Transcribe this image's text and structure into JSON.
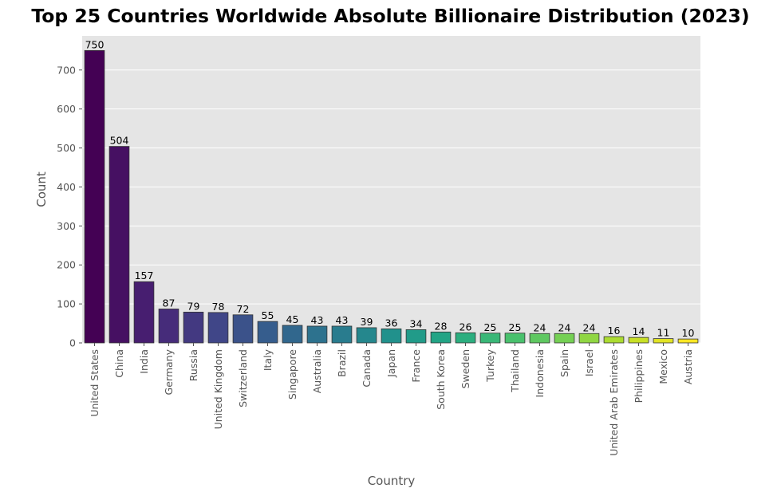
{
  "chart_data": {
    "type": "bar",
    "title": "Top 25 Countries Worldwide Absolute Billionaire Distribution (2023)",
    "xlabel": "Country",
    "ylabel": "Count",
    "categories": [
      "United States",
      "China",
      "India",
      "Germany",
      "Russia",
      "United Kingdom",
      "Switzerland",
      "Italy",
      "Singapore",
      "Australia",
      "Brazil",
      "Canada",
      "Japan",
      "France",
      "South Korea",
      "Sweden",
      "Turkey",
      "Thailand",
      "Indonesia",
      "Spain",
      "Israel",
      "United Arab Emirates",
      "Philippines",
      "Mexico",
      "Austria"
    ],
    "values": [
      750,
      504,
      157,
      87,
      79,
      78,
      72,
      55,
      45,
      43,
      43,
      39,
      36,
      34,
      28,
      26,
      25,
      25,
      24,
      24,
      24,
      16,
      14,
      11,
      10
    ],
    "ylim": [
      0,
      787.5
    ],
    "yticks": [
      0,
      100,
      200,
      300,
      400,
      500,
      600,
      700
    ],
    "grid": true,
    "colormap": "viridis",
    "colors": {
      "plot_background": "#E5E5E5",
      "grid": "#FFFFFF",
      "bar_edge": "#333333"
    }
  }
}
